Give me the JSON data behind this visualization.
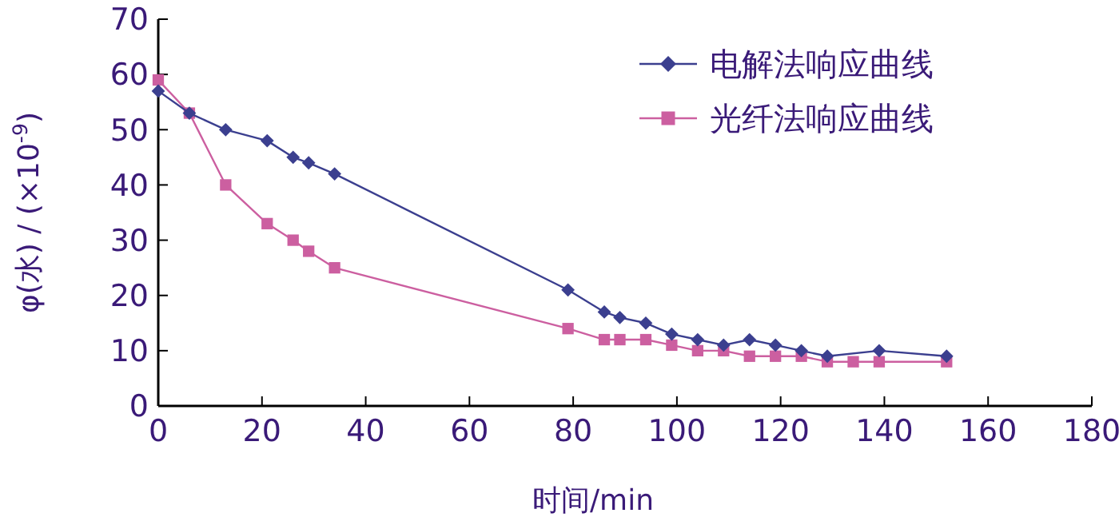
{
  "chart_data": {
    "type": "line",
    "xlabel": "时间/min",
    "ylabel": "φ(水) / (×10$^{-9}$)",
    "xlim": [
      0,
      180
    ],
    "xticks": [
      0,
      20,
      40,
      60,
      80,
      100,
      120,
      140,
      160,
      180
    ],
    "ylim": [
      0,
      70
    ],
    "yticks": [
      0,
      10,
      20,
      30,
      40,
      50,
      60,
      70
    ],
    "grid": false,
    "legend": "top right",
    "series": [
      {
        "name": "电解法响应曲线",
        "color": "#3b3f8f",
        "marker": "diamond",
        "x": [
          0,
          6,
          13,
          21,
          26,
          29,
          34,
          79,
          86,
          89,
          94,
          99,
          104,
          109,
          114,
          119,
          124,
          129,
          139,
          152
        ],
        "values": [
          57,
          53,
          50,
          48,
          45,
          44,
          42,
          21,
          17,
          16,
          15,
          13,
          12,
          11,
          12,
          11,
          10,
          9,
          10,
          9
        ]
      },
      {
        "name": "光纤法响应曲线",
        "color": "#cc5fa0",
        "marker": "square",
        "x": [
          0,
          6,
          13,
          21,
          26,
          29,
          34,
          79,
          86,
          89,
          94,
          99,
          104,
          109,
          114,
          119,
          124,
          129,
          134,
          139,
          152
        ],
        "values": [
          59,
          53,
          40,
          33,
          30,
          28,
          25,
          14,
          12,
          12,
          12,
          11,
          10,
          10,
          9,
          9,
          9,
          8,
          8,
          8,
          8
        ]
      }
    ]
  }
}
